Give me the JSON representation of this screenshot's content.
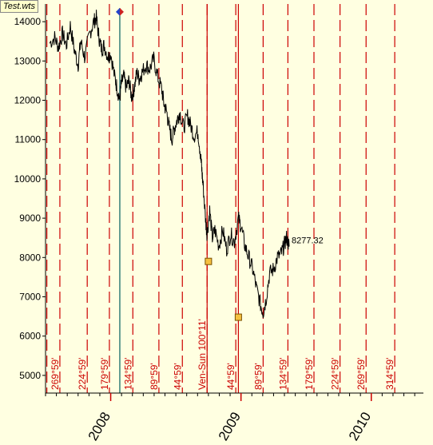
{
  "window": {
    "file_label": "Test.wts"
  },
  "chart_data": {
    "type": "line",
    "y_ticks": [
      5000,
      6000,
      7000,
      8000,
      9000,
      10000,
      11000,
      12000,
      13000,
      14000
    ],
    "ylim": [
      4550,
      14450
    ],
    "x_years": [
      {
        "label": "2008",
        "t": 2008.0
      },
      {
        "label": "2009",
        "t": 2009.0
      },
      {
        "label": "2010",
        "t": 2010.0
      }
    ],
    "xlim": [
      2007.5,
      2010.4
    ],
    "last_value_label": "8277.32",
    "series_points": [
      [
        2007.53,
        13450
      ],
      [
        2007.57,
        13600
      ],
      [
        2007.6,
        13350
      ],
      [
        2007.63,
        13700
      ],
      [
        2007.66,
        13400
      ],
      [
        2007.69,
        13900
      ],
      [
        2007.72,
        13300
      ],
      [
        2007.75,
        12900
      ],
      [
        2007.77,
        13500
      ],
      [
        2007.8,
        13100
      ],
      [
        2007.84,
        13700
      ],
      [
        2007.87,
        14000
      ],
      [
        2007.89,
        14100
      ],
      [
        2007.91,
        13600
      ],
      [
        2007.93,
        13300
      ],
      [
        2007.95,
        13400
      ],
      [
        2007.98,
        13100
      ],
      [
        2008.0,
        13200
      ],
      [
        2008.03,
        12600
      ],
      [
        2008.05,
        12300
      ],
      [
        2008.07,
        12000
      ],
      [
        2008.08,
        12400
      ],
      [
        2008.1,
        12600
      ],
      [
        2008.12,
        12300
      ],
      [
        2008.14,
        12500
      ],
      [
        2008.16,
        12100
      ],
      [
        2008.18,
        12300
      ],
      [
        2008.2,
        12700
      ],
      [
        2008.22,
        12550
      ],
      [
        2008.24,
        12700
      ],
      [
        2008.27,
        12900
      ],
      [
        2008.3,
        12800
      ],
      [
        2008.33,
        13050
      ],
      [
        2008.36,
        12600
      ],
      [
        2008.39,
        12300
      ],
      [
        2008.41,
        11900
      ],
      [
        2008.43,
        11700
      ],
      [
        2008.45,
        11300
      ],
      [
        2008.47,
        11000
      ],
      [
        2008.49,
        11300
      ],
      [
        2008.51,
        11500
      ],
      [
        2008.53,
        11700
      ],
      [
        2008.56,
        11300
      ],
      [
        2008.59,
        11600
      ],
      [
        2008.61,
        11400
      ],
      [
        2008.64,
        11100
      ],
      [
        2008.67,
        11200
      ],
      [
        2008.69,
        10600
      ],
      [
        2008.7,
        10200
      ],
      [
        2008.71,
        9800
      ],
      [
        2008.73,
        8900
      ],
      [
        2008.74,
        8600
      ],
      [
        2008.76,
        9200
      ],
      [
        2008.78,
        8500
      ],
      [
        2008.8,
        8700
      ],
      [
        2008.83,
        8300
      ],
      [
        2008.86,
        8700
      ],
      [
        2008.89,
        8200
      ],
      [
        2008.92,
        8600
      ],
      [
        2008.95,
        8400
      ],
      [
        2008.98,
        9000
      ],
      [
        2009.0,
        8800
      ],
      [
        2009.03,
        8300
      ],
      [
        2009.06,
        8000
      ],
      [
        2009.09,
        7700
      ],
      [
        2009.12,
        7200
      ],
      [
        2009.15,
        6800
      ],
      [
        2009.17,
        6600
      ],
      [
        2009.19,
        6900
      ],
      [
        2009.22,
        7600
      ],
      [
        2009.25,
        7700
      ],
      [
        2009.28,
        8000
      ],
      [
        2009.31,
        8100
      ],
      [
        2009.33,
        8300
      ],
      [
        2009.35,
        8500
      ],
      [
        2009.37,
        8277
      ]
    ],
    "vertical_markers": [
      {
        "t": 2007.51,
        "label": ""
      },
      {
        "t": 2007.61,
        "label": "269°59'"
      },
      {
        "t": 2007.82,
        "label": "224°59'"
      },
      {
        "t": 2007.99,
        "label": "179°59'"
      },
      {
        "t": 2008.17,
        "label": "134°59'"
      },
      {
        "t": 2008.37,
        "label": "89°59'"
      },
      {
        "t": 2008.55,
        "label": "44°59'"
      },
      {
        "t": 2008.74,
        "label": ""
      },
      {
        "t": 2008.96,
        "label": "44°59'"
      },
      {
        "t": 2009.17,
        "label": "89°59'"
      },
      {
        "t": 2009.36,
        "label": "134°59'"
      },
      {
        "t": 2009.56,
        "label": "179°59'"
      },
      {
        "t": 2009.76,
        "label": "224°59'"
      },
      {
        "t": 2009.96,
        "label": "269°59'"
      },
      {
        "t": 2010.18,
        "label": "314°59'"
      }
    ],
    "ven_sun_marker": {
      "t": 2008.74,
      "label": "Ven-Sun 100°11'"
    },
    "dated_line": {
      "t": 2008.07,
      "color": "#006060"
    },
    "diamond": {
      "t": 2008.07,
      "value": 14250
    },
    "square_markers": [
      {
        "t": 2008.75,
        "value": 7900
      },
      {
        "t": 2008.98,
        "value": 6480
      }
    ],
    "colors": {
      "markers": "#cc0000",
      "series": "#000000",
      "dated_line": "#006060",
      "background": "#ffffe1",
      "square_fill": "#f5c040"
    },
    "grid": false
  }
}
